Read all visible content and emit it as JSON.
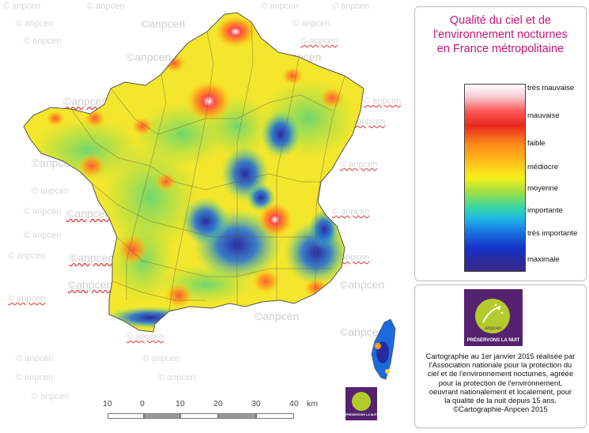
{
  "watermark": {
    "text_plain": "© anpcen",
    "text_big": "©anpcen"
  },
  "legend": {
    "title_lines": [
      "Qualité du ciel et de",
      "l'environnement nocturnes",
      "en France métropolitaine"
    ],
    "levels": [
      "très mauvaise",
      "mauvaise",
      "faible",
      "médiocre",
      "moyenne",
      "importante",
      "très importante",
      "maximale"
    ],
    "title_color": "#c8137a"
  },
  "logo": {
    "name": "anpcen",
    "tagline": "PRÉSERVONS LA NUIT",
    "colors": {
      "background": "#54226e",
      "circle": "#b3cc2b"
    }
  },
  "credit": {
    "lines": [
      "Cartographie au 1er janvier 2015 réalisée par",
      "l'Association nationale pour la protection du",
      "ciel et de l'environnement nocturnes, agréée",
      "pour la protection de l'environnement,",
      "oeuvrant nationalement et localement, pour",
      "la qualité de la nuit depuis 15 ans.",
      "©Cartographie-Anpcen 2015"
    ]
  },
  "scale": {
    "ticks": [
      "10",
      "0",
      "10",
      "20",
      "30",
      "40"
    ],
    "unit": "km"
  }
}
